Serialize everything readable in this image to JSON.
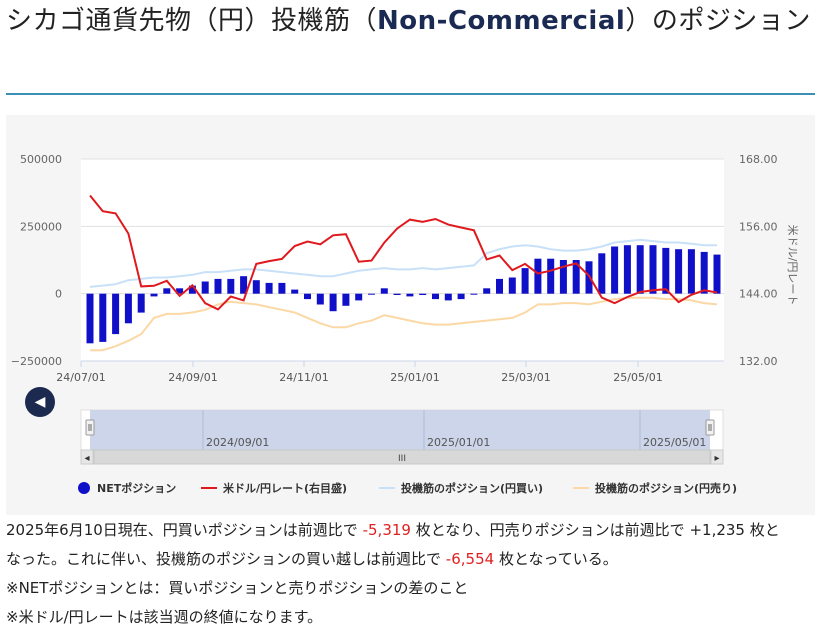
{
  "title": {
    "part1": "シカゴ通貨先物（円）投機筋（",
    "bold": "Non-Commercial",
    "part2": "）のポジション"
  },
  "colors": {
    "net": "#1010c8",
    "rate": "#e0191e",
    "long": "#c8e0f8",
    "short": "#fbd8a5",
    "accent_rule": "#3a8fb5",
    "button": "#1c2a4f",
    "negative_text": "#e02020"
  },
  "chart_data": {
    "type": "bar",
    "x_ticks": [
      "24/07/01",
      "24/09/01",
      "24/11/01",
      "25/01/01",
      "25/03/01",
      "25/05/01"
    ],
    "y_left": {
      "ticks": [
        "500000",
        "250000",
        "0",
        "−250000"
      ],
      "ylim": [
        -250000,
        500000
      ]
    },
    "y_right": {
      "label": "米ドル/円レート",
      "ticks": [
        "168.00",
        "156.00",
        "144.00",
        "132.00"
      ],
      "ylim": [
        132,
        168
      ]
    },
    "navigator_labels": [
      "2024/09/01",
      "2025/01/01",
      "2025/05/01"
    ],
    "legend_position": "bottom",
    "grid": true,
    "series": [
      {
        "name": "NETポジション",
        "type": "bar",
        "axis": "left",
        "values": [
          -184000,
          -179000,
          -150000,
          -110000,
          -70000,
          -10000,
          20000,
          20000,
          30000,
          45000,
          55000,
          55000,
          65000,
          50000,
          40000,
          40000,
          15000,
          -20000,
          -40000,
          -65000,
          -45000,
          -25000,
          0,
          20000,
          -5000,
          -10000,
          -5000,
          -20000,
          -25000,
          -20000,
          0,
          20000,
          55000,
          60000,
          95000,
          130000,
          130000,
          125000,
          125000,
          120000,
          150000,
          175000,
          180000,
          180000,
          180000,
          170000,
          165000,
          165000,
          155000,
          145000
        ]
      },
      {
        "name": "米ドル/円レート(右目盛)",
        "type": "line",
        "axis": "right",
        "values": [
          161.5,
          158.7,
          158.3,
          154.7,
          145.3,
          145.4,
          146.3,
          143.6,
          145.5,
          142.3,
          141.2,
          143.5,
          142.8,
          149.3,
          149.8,
          150.2,
          152.5,
          153.3,
          152.8,
          154.4,
          154.6,
          149.7,
          149.9,
          153.1,
          155.6,
          157.2,
          156.8,
          157.3,
          156.3,
          155.8,
          155.3,
          150.1,
          150.8,
          148.2,
          149.3,
          147.6,
          148.1,
          148.8,
          149.4,
          147.2,
          143.3,
          142.3,
          143.4,
          144.3,
          144.6,
          144.8,
          142.5,
          143.8,
          144.6,
          144.2
        ]
      },
      {
        "name": "投機筋のポジション(円買い)",
        "type": "line",
        "axis": "left",
        "values": [
          25000,
          30000,
          35000,
          50000,
          55000,
          60000,
          60000,
          65000,
          70000,
          80000,
          80000,
          85000,
          90000,
          90000,
          85000,
          80000,
          75000,
          70000,
          65000,
          65000,
          75000,
          85000,
          90000,
          95000,
          90000,
          90000,
          95000,
          90000,
          95000,
          100000,
          105000,
          150000,
          165000,
          175000,
          180000,
          175000,
          165000,
          160000,
          160000,
          165000,
          175000,
          190000,
          195000,
          200000,
          195000,
          190000,
          190000,
          185000,
          180000,
          180000
        ]
      },
      {
        "name": "投機筋のポジション(円売り)",
        "type": "line",
        "axis": "left",
        "values": [
          -210000,
          -210000,
          -195000,
          -175000,
          -150000,
          -90000,
          -75000,
          -75000,
          -70000,
          -60000,
          -40000,
          -30000,
          -35000,
          -40000,
          -50000,
          -60000,
          -70000,
          -90000,
          -110000,
          -125000,
          -125000,
          -110000,
          -100000,
          -80000,
          -90000,
          -100000,
          -110000,
          -115000,
          -115000,
          -110000,
          -105000,
          -100000,
          -95000,
          -90000,
          -70000,
          -40000,
          -40000,
          -35000,
          -35000,
          -40000,
          -30000,
          -20000,
          -15000,
          -15000,
          -15000,
          -20000,
          -20000,
          -25000,
          -35000,
          -40000
        ]
      }
    ]
  },
  "nav": {
    "prev_label": "◀",
    "scroll_label": "III",
    "left_arrow": "◂",
    "right_arrow": "▸"
  },
  "legend": {
    "net": "NETポジション",
    "rate": "米ドル/円レート(右目盛)",
    "long": "投機筋のポジション(円買い)",
    "short": "投機筋のポジション(円売り)"
  },
  "summary": {
    "l1a": "2025年6月10日現在、円買いポジションは前週比で",
    "v1": "-5,319",
    "l1b": "枚となり、円売りポジションは前週比で +1,235 枚と",
    "l2a": "なった。これに伴い、投機筋のポジションの買い越しは前週比で",
    "v2": "-6,554",
    "l2b": "枚となっている。",
    "note1": "※NETポジションとは：買いポジションと売りポジションの差のこと",
    "note2": "※米ドル/円レートは該当週の終値になります。"
  }
}
